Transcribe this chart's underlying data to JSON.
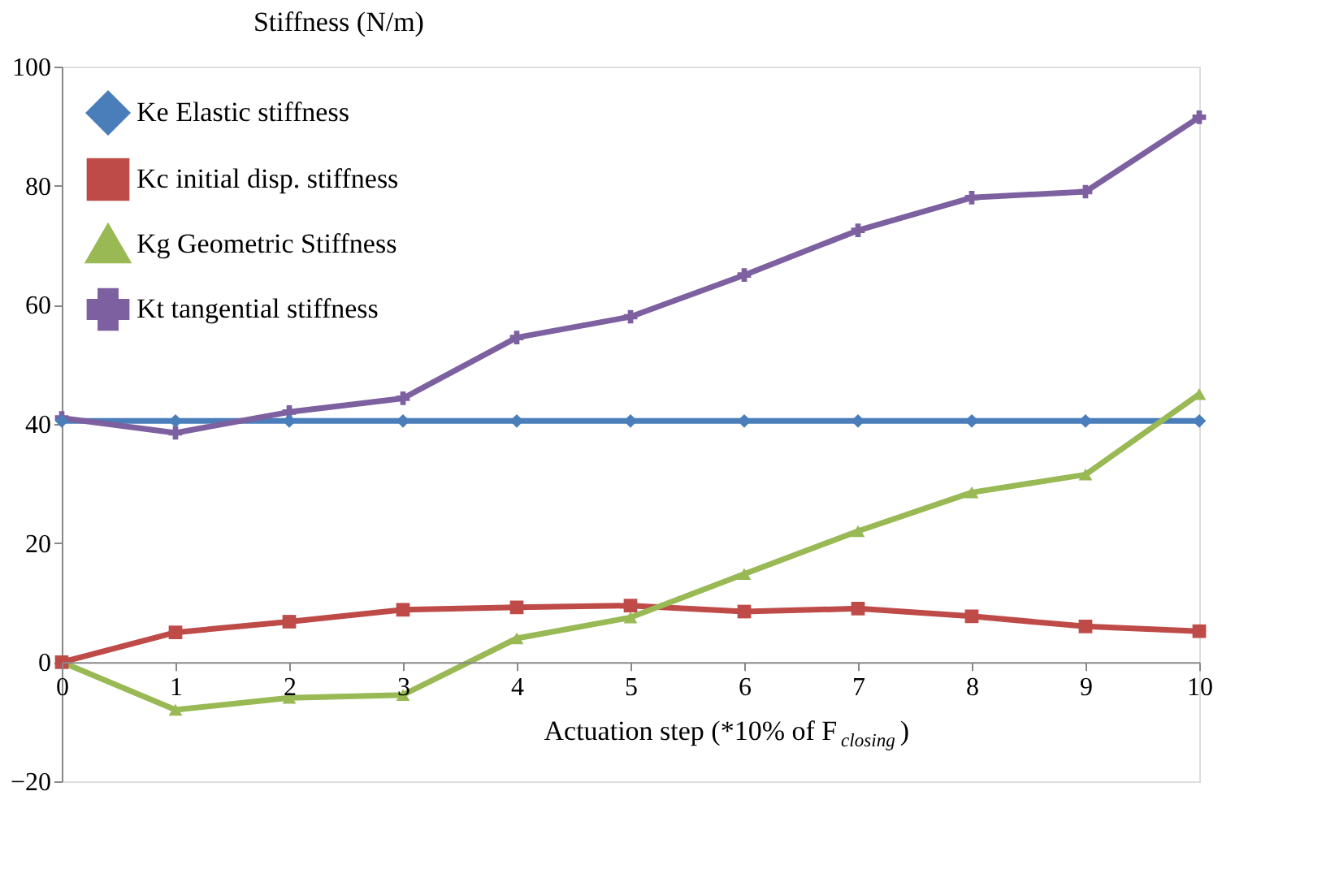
{
  "chart_data": {
    "type": "line",
    "ylabel": "Stiffness (N/m)",
    "xlabel": "Actuation step (*10% of F$_{closing}$)",
    "x": [
      0,
      1,
      2,
      3,
      4,
      5,
      6,
      7,
      8,
      9,
      10
    ],
    "xlim": [
      0,
      10
    ],
    "xticks": [
      0,
      1,
      2,
      3,
      4,
      5,
      6,
      7,
      8,
      9,
      10
    ],
    "ylim": [
      -20,
      100
    ],
    "yticks": [
      -20,
      0,
      20,
      40,
      60,
      80,
      100
    ],
    "grid": false,
    "legend": "top left",
    "series": [
      {
        "name": "Ke Elastic stiffness",
        "color": "#4a7ebb",
        "marker": "diamond",
        "values": [
          40.5,
          40.5,
          40.5,
          40.5,
          40.5,
          40.5,
          40.5,
          40.5,
          40.5,
          40.5,
          40.5
        ]
      },
      {
        "name": "Kc initial disp. stiffness",
        "color": "#be4b48",
        "marker": "square",
        "values": [
          0,
          5,
          6.8,
          8.8,
          9.2,
          9.5,
          8.5,
          9,
          7.7,
          6,
          5.2
        ]
      },
      {
        "name": "Kg Geometric Stiffness",
        "color": "#98b954",
        "marker": "triangle",
        "values": [
          0,
          -8,
          -6,
          -5.5,
          4,
          7.5,
          14.8,
          22,
          28.5,
          31.5,
          45
        ]
      },
      {
        "name": "Kt tangential stiffness",
        "color": "#7d60a0",
        "marker": "cross",
        "values": [
          41,
          38.5,
          42,
          44.3,
          54.5,
          58,
          65,
          72.5,
          78,
          79,
          91.5
        ]
      }
    ]
  }
}
